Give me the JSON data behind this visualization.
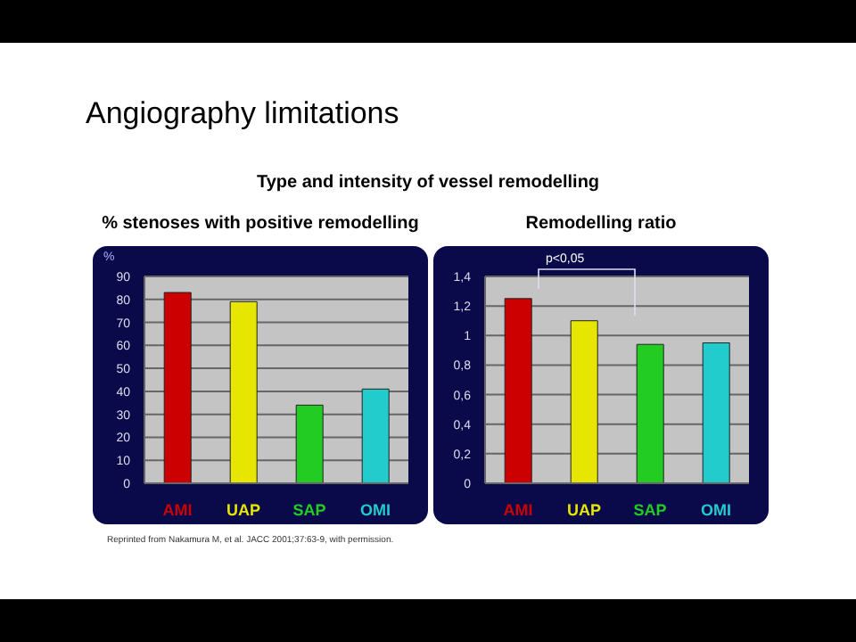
{
  "chart_data": [
    {
      "type": "bar",
      "title": "% stenoses with positive remodelling",
      "ylabel": "%",
      "annotations": [
        "Angiography limitations",
        "Type and intensity of vessel remodelling",
        "Reprinted from Nakamura M, et al. JACC 2001;37:63-9, with permission."
      ],
      "categories": [
        "AMI",
        "UAP",
        "SAP",
        "OMI"
      ],
      "values": [
        83,
        79,
        34,
        41
      ],
      "colors": [
        "#cc0000",
        "#e6e600",
        "#22cc22",
        "#22cccc"
      ],
      "ylim": [
        0,
        90
      ],
      "yticks": [
        0,
        10,
        20,
        30,
        40,
        50,
        60,
        70,
        80,
        90
      ],
      "grid": "y"
    },
    {
      "type": "bar",
      "title": "Remodelling ratio",
      "annotations": [
        "p<0,05"
      ],
      "categories": [
        "AMI",
        "UAP",
        "SAP",
        "OMI"
      ],
      "values": [
        1.25,
        1.1,
        0.94,
        0.95
      ],
      "colors": [
        "#cc0000",
        "#e6e600",
        "#22cc22",
        "#22cccc"
      ],
      "ylim": [
        0,
        1.4
      ],
      "yticks": [
        0,
        {
          "value": 0.2,
          "label": "0,2"
        },
        {
          "value": 0.4,
          "label": "0,4"
        },
        {
          "value": 0.6,
          "label": "0,6"
        },
        {
          "value": 0.8,
          "label": "0,8"
        },
        1,
        {
          "value": 1.2,
          "label": "1,2"
        },
        {
          "value": 1.4,
          "label": "1,4"
        }
      ],
      "grid": "y"
    }
  ]
}
